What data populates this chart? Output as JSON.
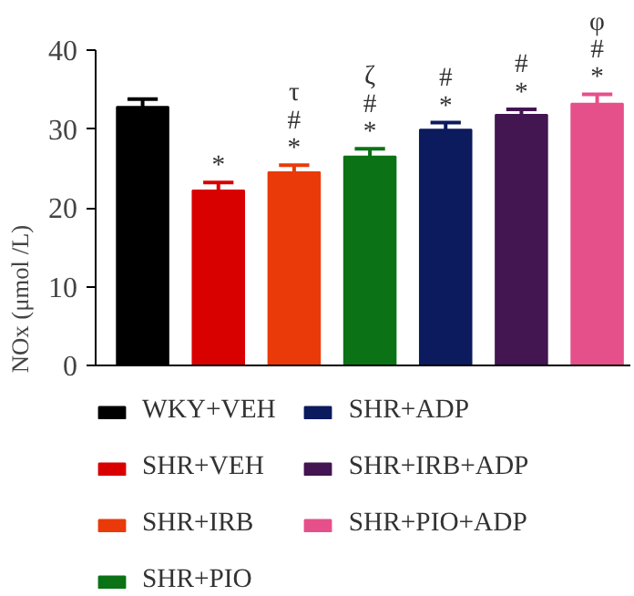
{
  "chart_data": {
    "type": "bar",
    "ylabel": "NOx (μmol /L)",
    "categories": [
      null,
      null,
      null,
      null,
      null,
      null,
      null
    ],
    "series": [
      {
        "name": "WKY+VEH",
        "color": "#000000",
        "values": [
          32.8,
          null,
          null,
          null,
          null,
          null,
          null
        ],
        "errors": [
          [
            32.8,
            33.8
          ],
          null,
          null,
          null,
          null,
          null,
          null
        ]
      },
      {
        "name": "SHR+VEH",
        "color": "#d90000",
        "values": [
          null,
          22.2,
          null,
          null,
          null,
          null,
          null
        ],
        "errors": [
          null,
          [
            22.2,
            23.2
          ],
          null,
          null,
          null,
          null,
          null
        ]
      },
      {
        "name": "SHR+IRB",
        "color": "#ea3a0a",
        "values": [
          null,
          null,
          24.5,
          null,
          null,
          null,
          null
        ],
        "errors": [
          null,
          null,
          [
            24.5,
            25.4
          ],
          null,
          null,
          null,
          null
        ]
      },
      {
        "name": "SHR+PIO",
        "color": "#0b7316",
        "values": [
          null,
          null,
          null,
          26.5,
          null,
          null,
          null
        ],
        "errors": [
          null,
          null,
          null,
          [
            26.5,
            27.5
          ],
          null,
          null,
          null
        ]
      },
      {
        "name": "SHR+ADP",
        "color": "#0c1a5e",
        "values": [
          null,
          null,
          null,
          null,
          29.9,
          null,
          null
        ],
        "errors": [
          null,
          null,
          null,
          null,
          [
            29.9,
            30.8
          ],
          null,
          null
        ]
      },
      {
        "name": "SHR+IRB+ADP",
        "color": "#431551",
        "values": [
          null,
          null,
          null,
          null,
          null,
          31.8,
          null
        ],
        "errors": [
          null,
          null,
          null,
          null,
          null,
          [
            31.8,
            32.5
          ],
          null
        ]
      },
      {
        "name": "SHR+PIO+ADP",
        "color": "#e6508a",
        "values": [
          null,
          null,
          null,
          null,
          null,
          null,
          33.2
        ],
        "errors": [
          null,
          null,
          null,
          null,
          null,
          null,
          [
            33.2,
            34.4
          ]
        ]
      }
    ],
    "annotations": [
      null,
      "*",
      "τ\n#\n*",
      "ζ\n#\n*",
      "#\n*",
      "#\n*",
      "φ\n#\n*"
    ],
    "ylim": [
      0,
      40
    ],
    "yticks": [
      0,
      10,
      20,
      30,
      40
    ],
    "grid": false,
    "legend": "bottom"
  }
}
